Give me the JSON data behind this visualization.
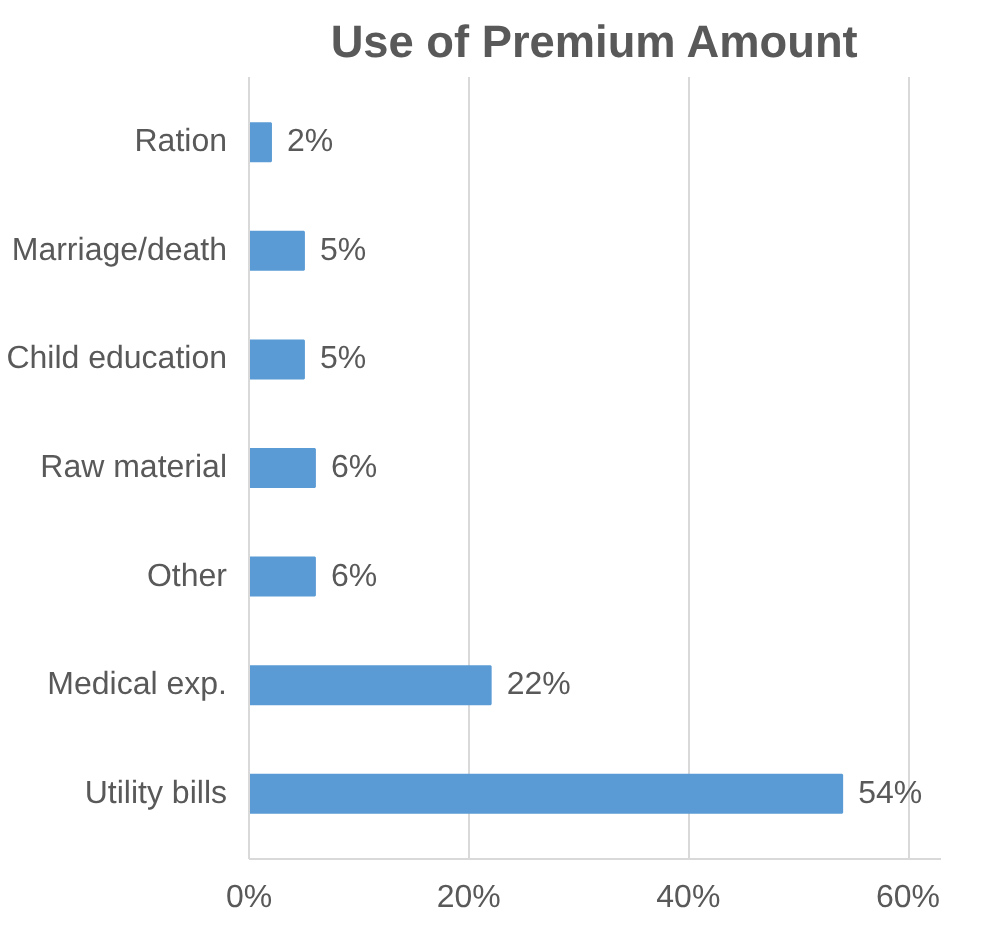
{
  "chart_data": {
    "type": "bar",
    "orientation": "horizontal",
    "title": "Use of Premium Amount",
    "categories": [
      "Ration",
      "Marriage/death",
      "Child education",
      "Raw material",
      "Other",
      "Medical exp.",
      "Utility bills"
    ],
    "values": [
      2,
      5,
      5,
      6,
      6,
      22,
      54
    ],
    "value_labels": [
      "2%",
      "5%",
      "5%",
      "6%",
      "6%",
      "22%",
      "54%"
    ],
    "color": "#5b9bd5",
    "xlim": [
      0,
      63
    ],
    "xticks": [
      {
        "value": 0,
        "label": "0%"
      },
      {
        "value": 20,
        "label": "20%"
      },
      {
        "value": 40,
        "label": "40%"
      },
      {
        "value": 60,
        "label": "60%"
      }
    ],
    "grid": "x"
  }
}
